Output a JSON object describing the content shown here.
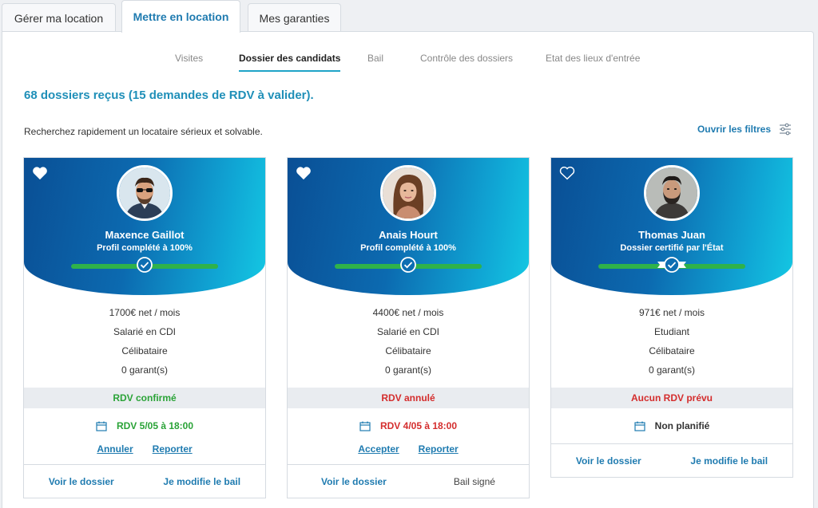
{
  "top_tabs": [
    {
      "label": "Gérer ma location"
    },
    {
      "label": "Mettre en location"
    },
    {
      "label": "Mes garanties"
    }
  ],
  "sub_tabs": [
    {
      "label": "Visites"
    },
    {
      "label": "Dossier des candidats"
    },
    {
      "label": "Bail"
    },
    {
      "label": "Contrôle des dossiers"
    },
    {
      "label": "Etat des lieux d'entrée"
    }
  ],
  "headline": "68 dossiers reçus (15 demandes de RDV à valider).",
  "subline": "Recherchez rapidement un locataire sérieux et solvable.",
  "filters_label": "Ouvrir les filtres",
  "colors": {
    "brand": "#1f7bb0",
    "accent": "#1fa4c8",
    "success": "#2aa337",
    "danger": "#d42d2d"
  },
  "candidates": [
    {
      "name": "Maxence Gaillot",
      "status": "Profil complété à 100%",
      "favorite": true,
      "income": "1700€ net / mois",
      "contract": "Salarié en CDI",
      "situation": "Célibataire",
      "guarantors": "0 garant(s)",
      "rdv_status": "RDV confirmé",
      "rdv_line": "RDV 5/05 à 18:00",
      "action_1": "Annuler",
      "action_2": "Reporter",
      "footer_1": "Voir le dossier",
      "footer_2": "Je modifie le bail"
    },
    {
      "name": "Anais Hourt",
      "status": "Profil complété à 100%",
      "favorite": true,
      "income": "4400€ net / mois",
      "contract": "Salarié en CDI",
      "situation": "Célibataire",
      "guarantors": "0 garant(s)",
      "rdv_status": "RDV annulé",
      "rdv_line": "RDV 4/05 à 18:00",
      "action_1": "Accepter",
      "action_2": "Reporter",
      "footer_1": "Voir le dossier",
      "footer_2": "Bail signé"
    },
    {
      "name": "Thomas Juan",
      "status": "Dossier certifié par l'État",
      "favorite": false,
      "income": "971€ net / mois",
      "contract": "Etudiant",
      "situation": "Célibataire",
      "guarantors": "0 garant(s)",
      "rdv_status": "Aucun RDV prévu",
      "rdv_line": "Non planifié",
      "footer_1": "Voir le dossier",
      "footer_2": "Je modifie le bail"
    }
  ]
}
